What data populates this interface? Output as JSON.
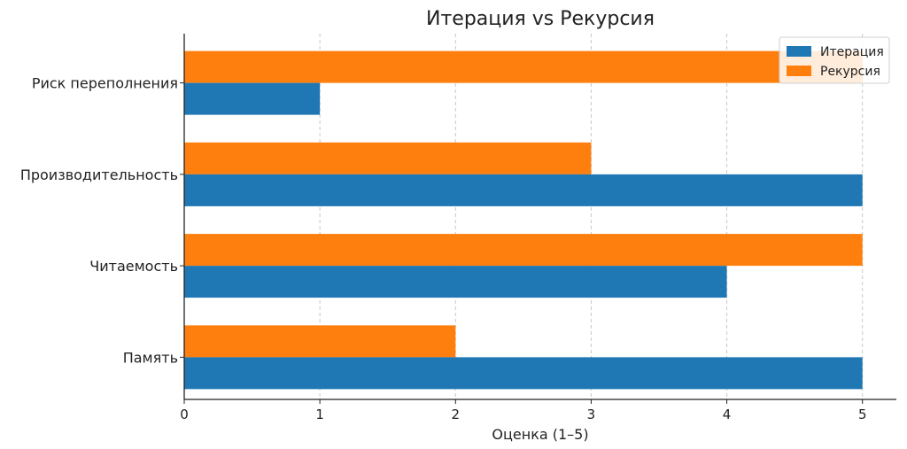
{
  "chart_data": {
    "type": "bar",
    "orientation": "horizontal",
    "title": "Итерация vs Рекурсия",
    "xlabel": "Оценка (1–5)",
    "ylabel": "",
    "xlim": [
      0,
      5.25
    ],
    "xticks": [
      0,
      1,
      2,
      3,
      4,
      5
    ],
    "grid": true,
    "legend_position": "top-right",
    "categories": [
      "Память",
      "Читаемость",
      "Производительность",
      "Риск переполнения"
    ],
    "series": [
      {
        "name": "Итерация",
        "color": "#1f77b4",
        "values": [
          5,
          4,
          5,
          1
        ]
      },
      {
        "name": "Рекурсия",
        "color": "#ff7f0e",
        "values": [
          2,
          5,
          3,
          5
        ]
      }
    ]
  }
}
